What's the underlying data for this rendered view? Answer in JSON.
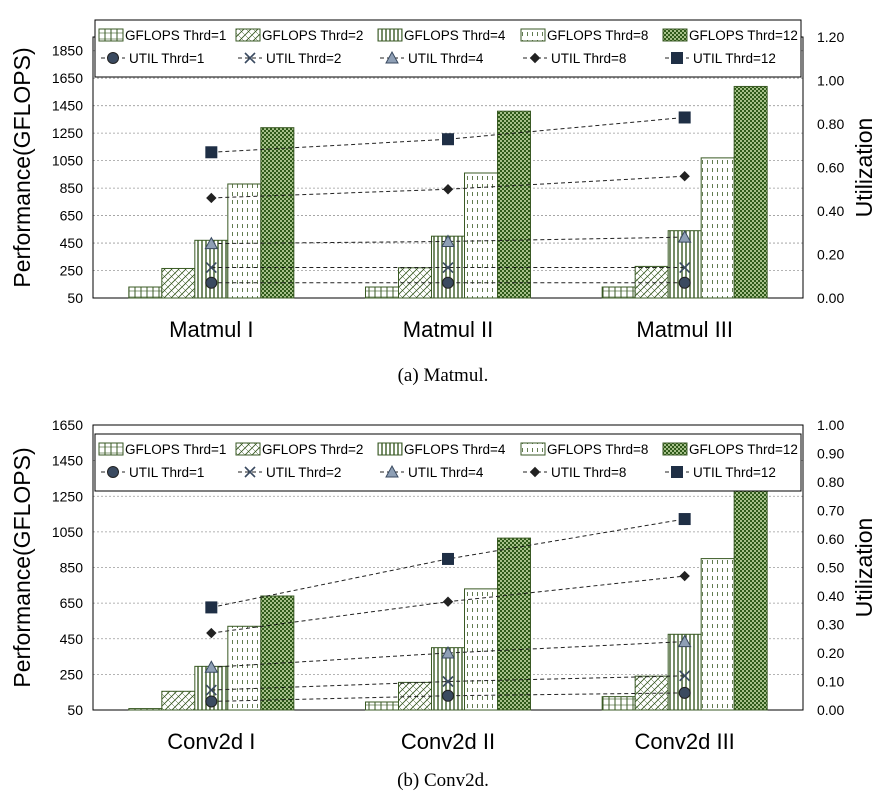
{
  "chart_data": [
    {
      "type": "bar",
      "categories": [
        "Matmul I",
        "Matmul II",
        "Matmul III"
      ],
      "caption": "(a) Matmul.",
      "ylabel": "Performance(GFLOPS)",
      "y2label": "Utilization",
      "ylim": [
        50,
        1950
      ],
      "yticks": [
        "50",
        "250",
        "450",
        "650",
        "850",
        "1050",
        "1250",
        "1450",
        "1650",
        "1850"
      ],
      "y2lim": [
        0,
        1.2
      ],
      "y2ticks": [
        "0.00",
        "0.20",
        "0.40",
        "0.60",
        "0.80",
        "1.00",
        "1.20"
      ],
      "grid": true,
      "legend": "top, inside plot, two rows",
      "series": [
        {
          "name": "GFLOPS Thrd=1",
          "values": [
            130,
            130,
            130
          ]
        },
        {
          "name": "GFLOPS Thrd=2",
          "values": [
            265,
            270,
            280
          ]
        },
        {
          "name": "GFLOPS Thrd=4",
          "values": [
            470,
            500,
            540
          ]
        },
        {
          "name": "GFLOPS Thrd=8",
          "values": [
            880,
            960,
            1070
          ]
        },
        {
          "name": "GFLOPS Thrd=12",
          "values": [
            1290,
            1410,
            1590
          ]
        }
      ],
      "line_series": [
        {
          "name": "UTIL Thrd=1",
          "values": [
            0.07,
            0.07,
            0.07
          ]
        },
        {
          "name": "UTIL Thrd=2",
          "values": [
            0.14,
            0.14,
            0.14
          ]
        },
        {
          "name": "UTIL Thrd=4",
          "values": [
            0.25,
            0.26,
            0.28
          ]
        },
        {
          "name": "UTIL Thrd=8",
          "values": [
            0.46,
            0.5,
            0.56
          ]
        },
        {
          "name": "UTIL Thrd=12",
          "values": [
            0.67,
            0.73,
            0.83
          ]
        }
      ]
    },
    {
      "type": "bar",
      "categories": [
        "Conv2d I",
        "Conv2d II",
        "Conv2d III"
      ],
      "caption": "(b) Conv2d.",
      "ylabel": "Performance(GFLOPS)",
      "y2label": "Utilization",
      "ylim": [
        50,
        1650
      ],
      "yticks": [
        "50",
        "250",
        "450",
        "650",
        "850",
        "1050",
        "1250",
        "1450",
        "1650"
      ],
      "y2lim": [
        0,
        1.0
      ],
      "y2ticks": [
        "0.00",
        "0.10",
        "0.20",
        "0.30",
        "0.40",
        "0.50",
        "0.60",
        "0.70",
        "0.80",
        "0.90",
        "1.00"
      ],
      "grid": true,
      "legend": "top, inside plot, two rows",
      "series": [
        {
          "name": "GFLOPS Thrd=1",
          "values": [
            58,
            95,
            125
          ]
        },
        {
          "name": "GFLOPS Thrd=2",
          "values": [
            155,
            205,
            240
          ]
        },
        {
          "name": "GFLOPS Thrd=4",
          "values": [
            295,
            400,
            475
          ]
        },
        {
          "name": "GFLOPS Thrd=8",
          "values": [
            520,
            730,
            900
          ]
        },
        {
          "name": "GFLOPS Thrd=12",
          "values": [
            690,
            1015,
            1290
          ]
        }
      ],
      "line_series": [
        {
          "name": "UTIL Thrd=1",
          "values": [
            0.03,
            0.05,
            0.06
          ]
        },
        {
          "name": "UTIL Thrd=2",
          "values": [
            0.07,
            0.1,
            0.12
          ]
        },
        {
          "name": "UTIL Thrd=4",
          "values": [
            0.15,
            0.2,
            0.24
          ]
        },
        {
          "name": "UTIL Thrd=8",
          "values": [
            0.27,
            0.38,
            0.47
          ]
        },
        {
          "name": "UTIL Thrd=12",
          "values": [
            0.36,
            0.53,
            0.67
          ]
        }
      ]
    }
  ],
  "style": {
    "bar_stroke": "#3a5a24",
    "bar_colors": [
      "#ffffff",
      "#ffffff",
      "#ffffff",
      "#ffffff",
      "#2f5a1a"
    ],
    "bar_patterns": [
      "hbar-vlines",
      "diag-hatch",
      "vlines-dense",
      "dashes",
      "checker"
    ],
    "line_color": "#222222",
    "marker_fill": "#3a4a60",
    "grid_color": "#9a9a9a",
    "markers": [
      "circle",
      "x",
      "triangle",
      "diamond",
      "square"
    ]
  }
}
